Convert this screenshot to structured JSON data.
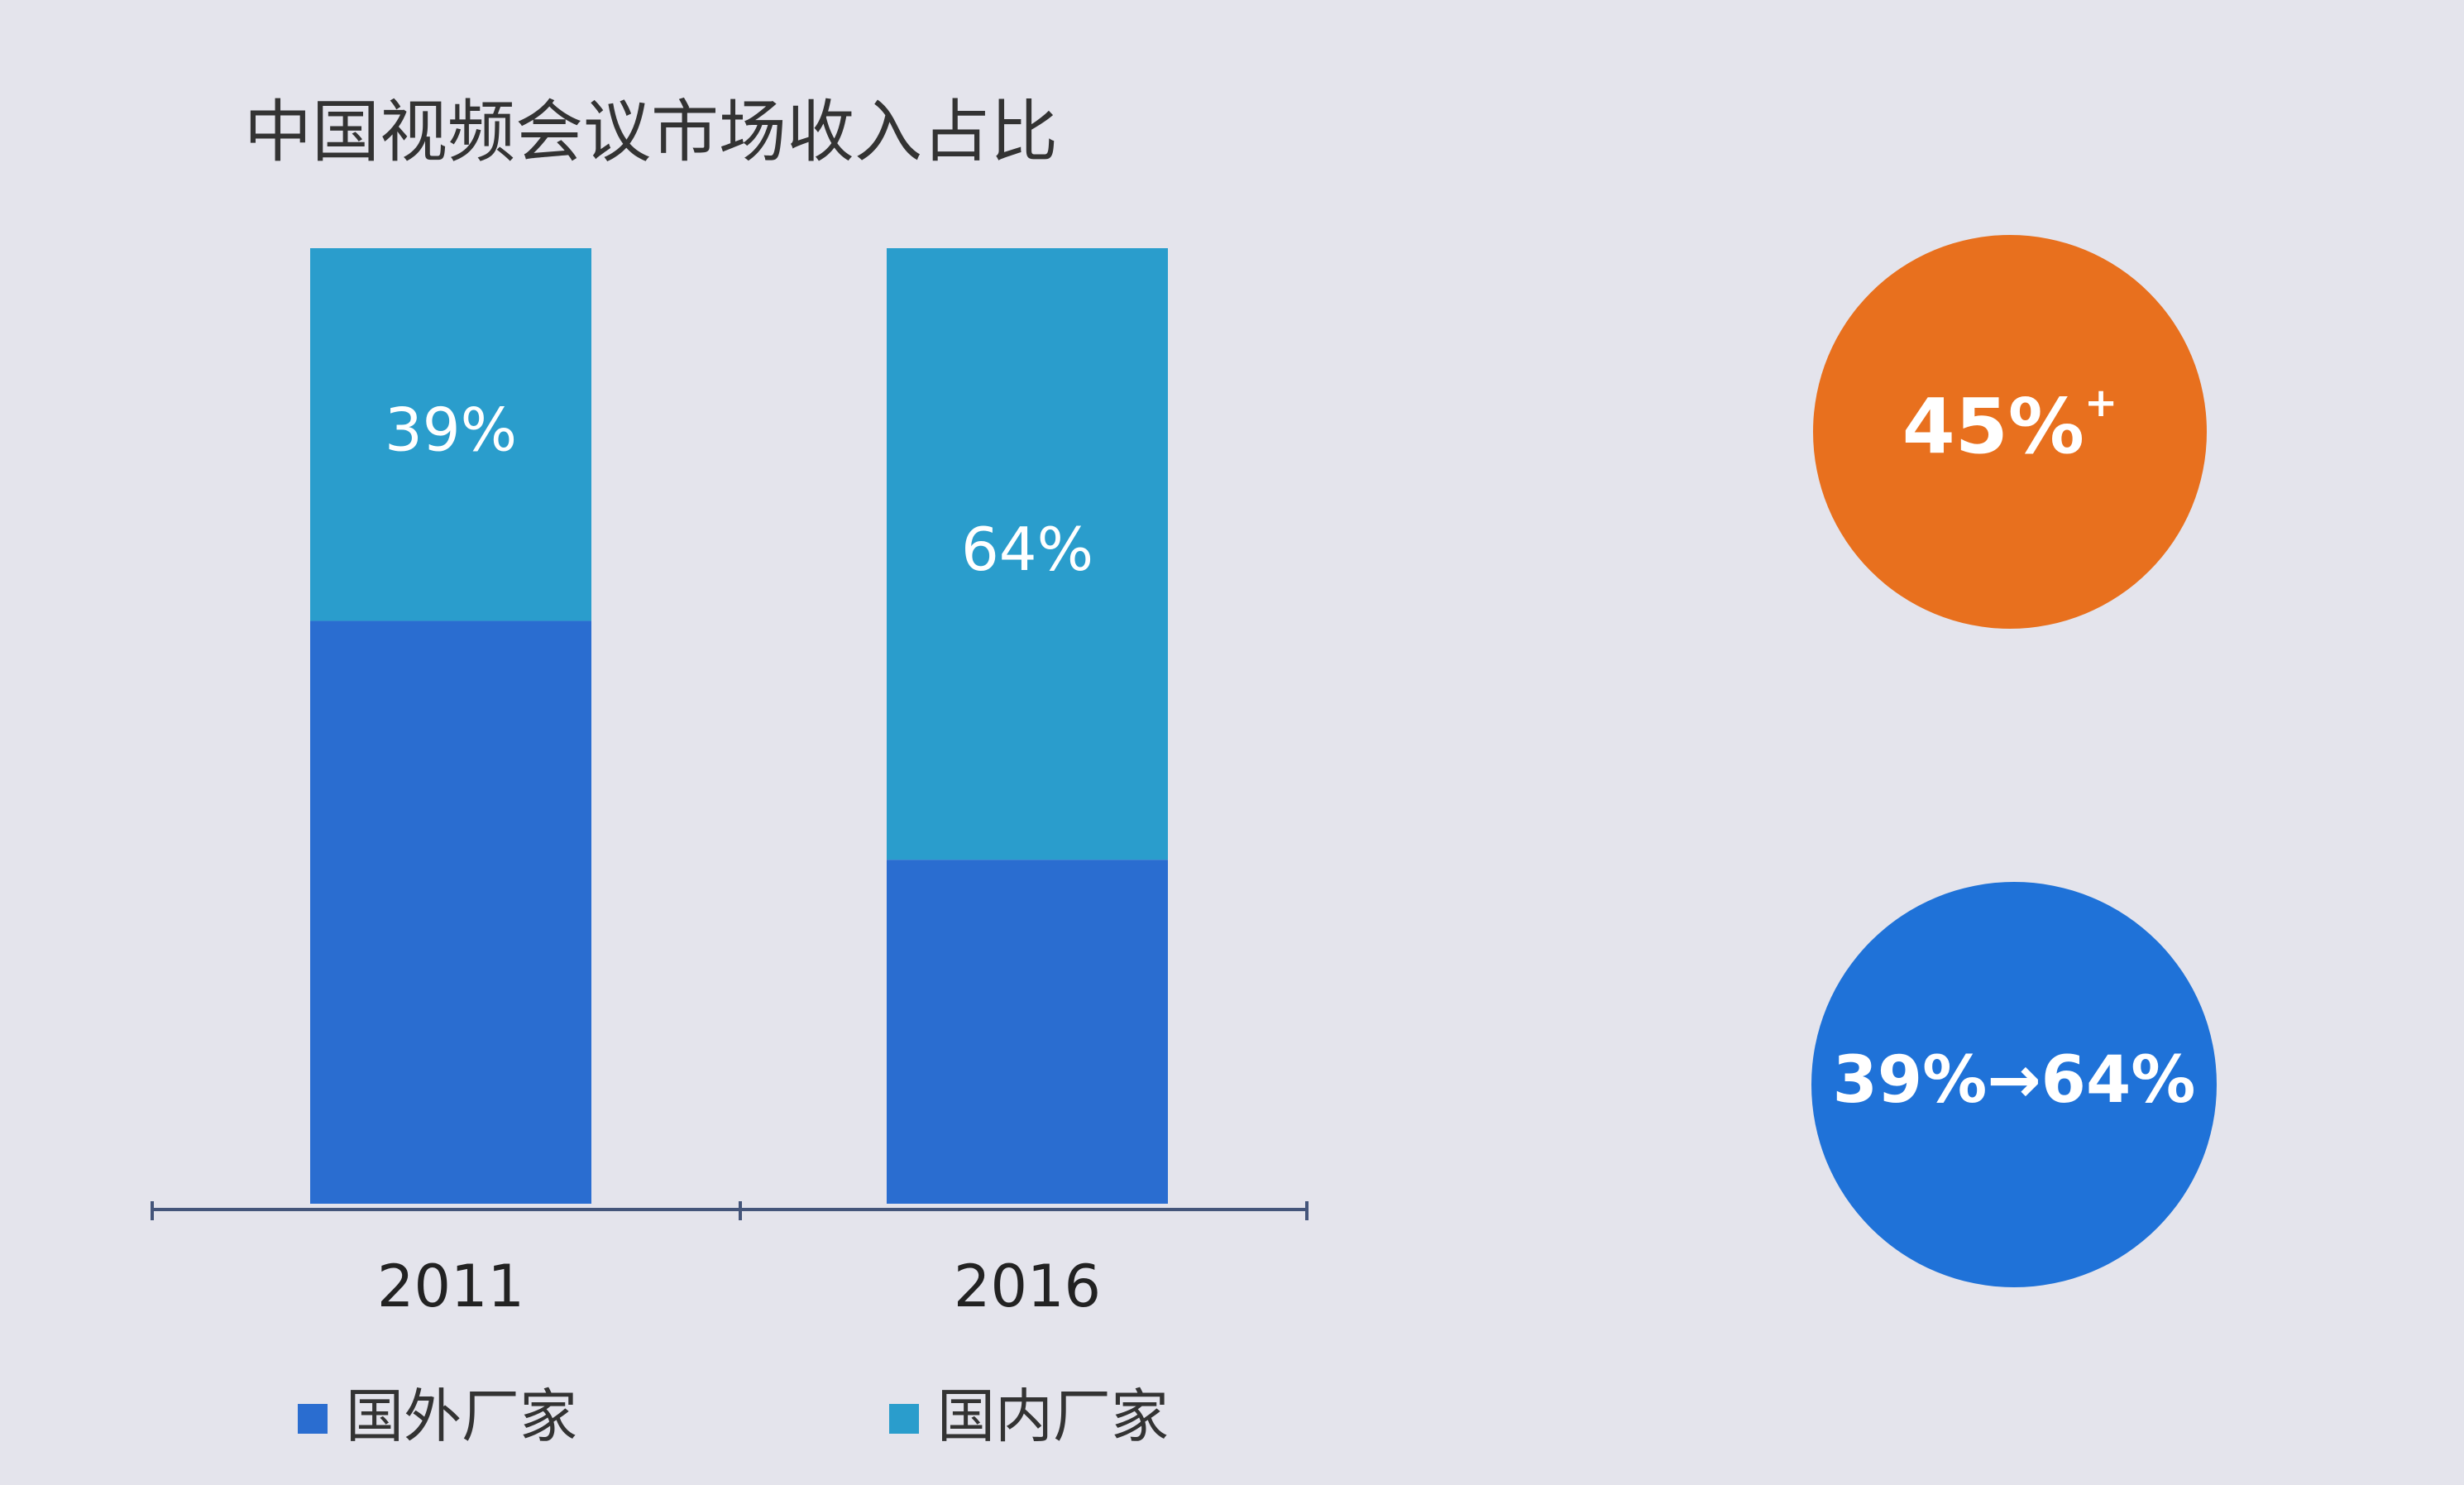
{
  "chart_data": {
    "type": "stacked_bar",
    "title": "中国视频会议市场收入占比",
    "categories": [
      "2011",
      "2016"
    ],
    "series": [
      {
        "name": "国外厂家",
        "color": "#2a6dd0",
        "values": [
          61,
          36
        ]
      },
      {
        "name": "国内厂家",
        "color": "#2a9dcc",
        "values": [
          39,
          64
        ],
        "value_labels": [
          "39%",
          "64%"
        ]
      }
    ],
    "ylim": [
      0,
      100
    ],
    "annotations": [
      {
        "text": "45%",
        "superscript": "+",
        "color": "#e8701e"
      },
      {
        "text": "39%→64%",
        "color": "#1f72d8"
      }
    ]
  }
}
